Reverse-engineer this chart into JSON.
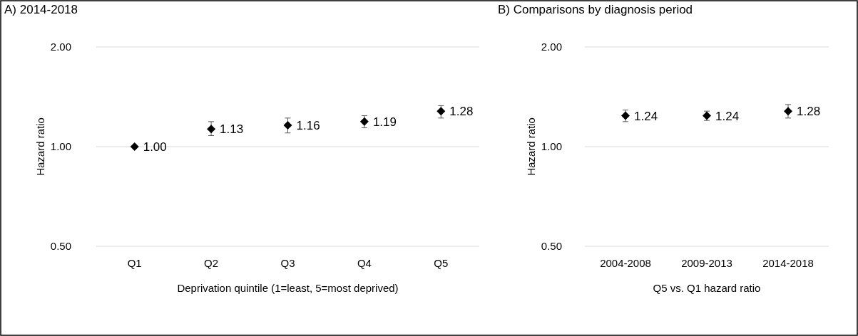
{
  "chart_data": [
    {
      "type": "scatter",
      "title": "A) 2014-2018",
      "xlabel": "Deprivation quintile (1=least, 5=most deprived)",
      "ylabel": "Hazard ratio",
      "categories": [
        "Q1",
        "Q2",
        "Q3",
        "Q4",
        "Q5"
      ],
      "log": true,
      "ylim": [
        0.5,
        2
      ],
      "yticks": [
        {
          "value": 0.5,
          "label": "0.50"
        },
        {
          "value": 1,
          "label": "1.00"
        },
        {
          "value": 2,
          "label": "2.00"
        }
      ],
      "grid": "y",
      "marker": "diamond",
      "series": [
        {
          "color": "#000000",
          "values": [
            1.0,
            1.13,
            1.16,
            1.19,
            1.28
          ],
          "errors": [
            null,
            [
              1.08,
              1.19
            ],
            [
              1.1,
              1.22
            ],
            [
              1.14,
              1.24
            ],
            [
              1.22,
              1.33
            ]
          ],
          "value_labels": [
            "1.00",
            "1.13",
            "1.16",
            "1.19",
            "1.28"
          ]
        }
      ]
    },
    {
      "type": "scatter",
      "title": "B) Comparisons by diagnosis period",
      "xlabel": "Q5 vs. Q1 hazard ratio",
      "ylabel": "Hazard ratio",
      "categories": [
        "2004-2008",
        "2009-2013",
        "2014-2018"
      ],
      "log": true,
      "ylim": [
        0.5,
        2
      ],
      "yticks": [
        {
          "value": 0.5,
          "label": "0.50"
        },
        {
          "value": 1,
          "label": "1.00"
        },
        {
          "value": 2,
          "label": "2.00"
        }
      ],
      "grid": "y",
      "marker": "diamond",
      "series": [
        {
          "color": "#000000",
          "values": [
            1.24,
            1.24,
            1.28
          ],
          "errors": [
            [
              1.19,
              1.29
            ],
            [
              1.2,
              1.28
            ],
            [
              1.22,
              1.34
            ]
          ],
          "value_labels": [
            "1.24",
            "1.24",
            "1.28"
          ]
        }
      ]
    }
  ]
}
